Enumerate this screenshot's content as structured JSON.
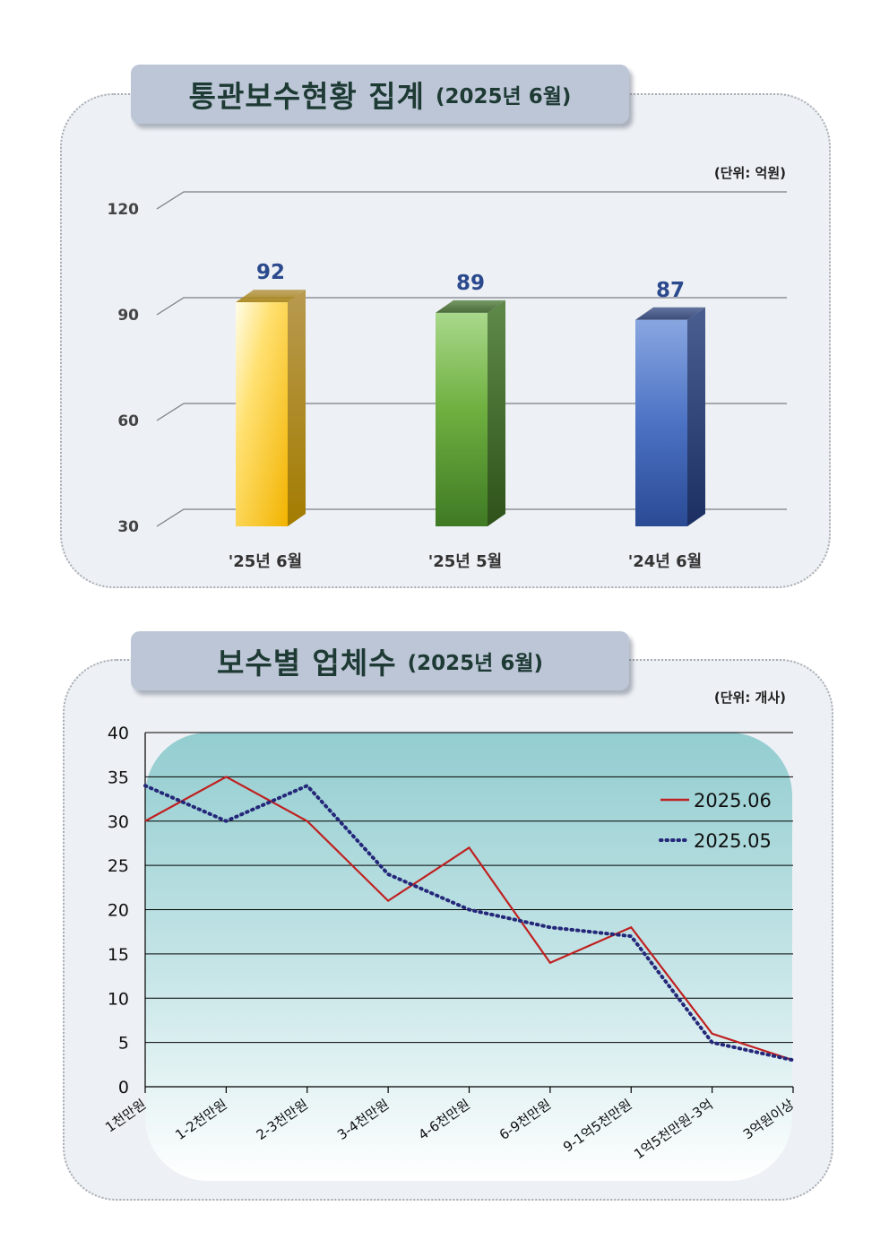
{
  "section1": {
    "title": "통관보수현황 집계",
    "subtitle": "(2025년 6월)",
    "unit": "(단위: 억원)"
  },
  "section2": {
    "title": "보수별 업체수",
    "subtitle": "(2025년 6월)",
    "unit": "(단위: 개사)"
  },
  "chart_data": [
    {
      "type": "bar",
      "categories": [
        "'25년 6월",
        "'25년 5월",
        "'24년 6월"
      ],
      "values": [
        92,
        89,
        87
      ],
      "value_labels": [
        "92",
        "89",
        "87"
      ],
      "yticks": [
        "30",
        "60",
        "90",
        "120"
      ],
      "ylim": [
        30,
        120
      ],
      "grid": true,
      "colors": [
        "#f5b800",
        "#5e9a38",
        "#3f63b4"
      ],
      "label_color": "#2b4a8e"
    },
    {
      "type": "line",
      "categories": [
        "1천만원",
        "1-2천만원",
        "2-3천만원",
        "3-4천만원",
        "4-6천만원",
        "6-9천만원",
        "9-1억5천만원",
        "1억5천만원-3억",
        "3억원이상"
      ],
      "series": [
        {
          "name": "2025.06",
          "values": [
            30,
            35,
            30,
            21,
            27,
            14,
            18,
            6,
            3
          ],
          "color": "#c02020",
          "style": "solid"
        },
        {
          "name": "2025.05",
          "values": [
            34,
            30,
            34,
            24,
            20,
            18,
            17,
            5,
            3
          ],
          "color": "#25287a",
          "style": "dotted"
        }
      ],
      "yticks": [
        "0",
        "5",
        "10",
        "15",
        "20",
        "25",
        "30",
        "35",
        "40"
      ],
      "ylim": [
        0,
        40
      ],
      "grid": true,
      "legend_position": "top-right"
    }
  ]
}
